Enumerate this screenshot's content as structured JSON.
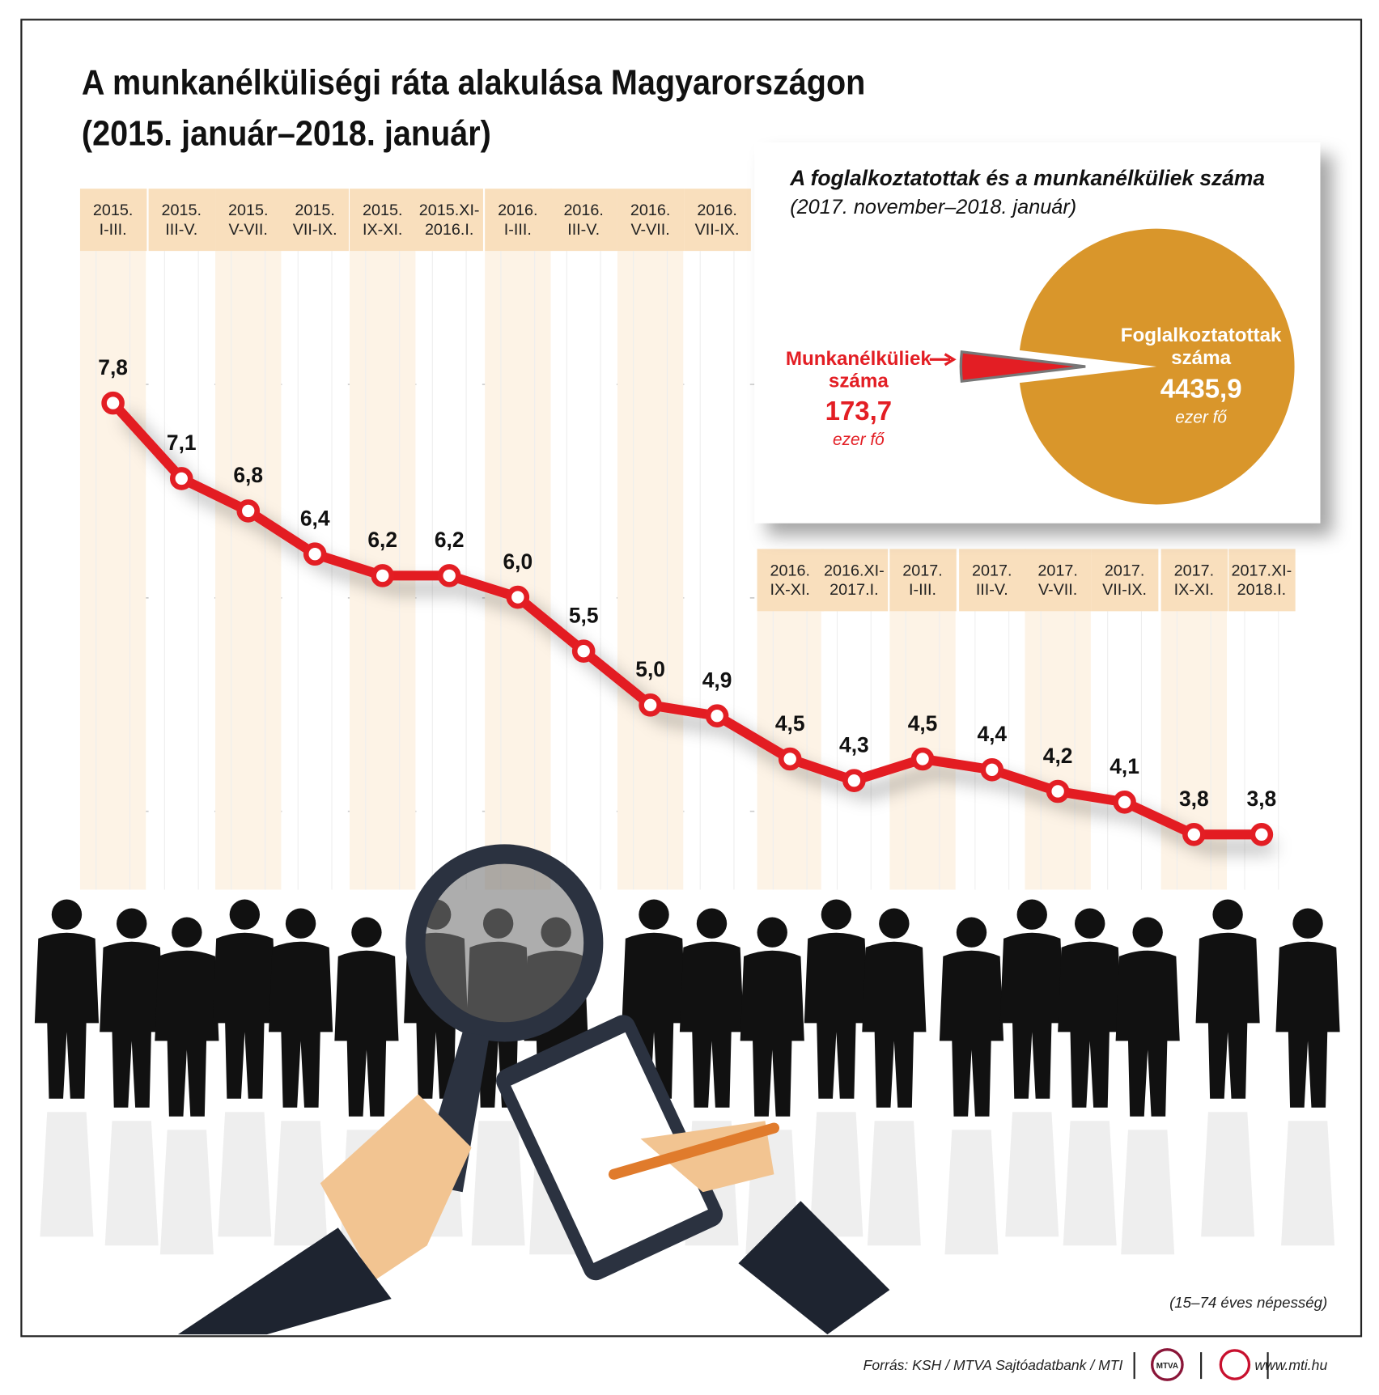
{
  "chart_data": [
    {
      "type": "line",
      "title": "A munkanélküliségi ráta alakulása Magyarországon",
      "subtitle": "(2015. január–2018. január)",
      "categories": [
        "2015.\nI-III.",
        "2015.\nIII-V.",
        "2015.\nV-VII.",
        "2015.\nVII-IX.",
        "2015.\nIX-XI.",
        "2015.XI-\n2016.I.",
        "2016.\nI-III.",
        "2016.\nIII-V.",
        "2016.\nV-VII.",
        "2016.\nVII-IX.",
        "2016.\nIX-XI.",
        "2016.XI-\n2017.I.",
        "2017.\nI-III.",
        "2017.\nIII-V.",
        "2017.\nV-VII.",
        "2017.\nVII-IX.",
        "2017.\nIX-XI.",
        "2017.XI-\n2018.I."
      ],
      "values": [
        7.8,
        7.1,
        6.8,
        6.4,
        6.2,
        6.2,
        6.0,
        5.5,
        5.0,
        4.9,
        4.5,
        4.3,
        4.5,
        4.4,
        4.2,
        4.1,
        3.8,
        3.8
      ],
      "value_labels": [
        "7,8",
        "7,1",
        "6,8",
        "6,4",
        "6,2",
        "6,2",
        "6,0",
        "5,5",
        "5,0",
        "4,9",
        "4,5",
        "4,3",
        "4,5",
        "4,4",
        "4,2",
        "4,1",
        "3,8",
        "3,8"
      ],
      "color": "#e31e24",
      "ylim": [
        3,
        9
      ],
      "note": "(15–74 éves népesség)",
      "source": "Forrás: KSH / MTVA Sajtóadatbank / MTI",
      "logo": "MTVA",
      "website": "www.mti.hu"
    },
    {
      "type": "pie",
      "title": "A foglalkoztatottak és a munkanélküliek száma",
      "subtitle": "(2017. november–2018. január)",
      "categories": [
        "Munkanélküliek\nszáma",
        "Foglalkoztatottak\nszáma"
      ],
      "values": [
        173.7,
        4435.9
      ],
      "value_labels": [
        "173,7",
        "4435,9"
      ],
      "unit": "ezer fő",
      "colors": [
        "#e31e24",
        "#d9962b"
      ]
    }
  ]
}
